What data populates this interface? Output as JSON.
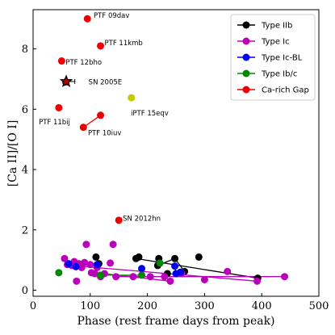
{
  "chart_data": {
    "type": "scatter",
    "xlabel": "Phase (rest frame days from peak)",
    "ylabel": "[Ca II]/[O I]",
    "xlim": [
      0,
      500
    ],
    "ylim": [
      -0.2,
      9.3
    ],
    "xticks": [
      0,
      100,
      200,
      300,
      400,
      500
    ],
    "yticks": [
      0,
      2,
      4,
      6,
      8
    ],
    "grid": false,
    "legend_position": "top-right",
    "series": [
      {
        "name": "Type IIb",
        "color": "#000000",
        "points": [
          [
            110,
            1.1
          ],
          [
            115,
            0.88
          ],
          [
            180,
            1.05
          ],
          [
            185,
            1.1
          ],
          [
            220,
            1.05
          ],
          [
            218,
            0.82
          ],
          [
            235,
            0.55
          ],
          [
            248,
            1.05
          ],
          [
            265,
            0.62
          ],
          [
            290,
            1.1
          ],
          [
            393,
            0.4
          ]
        ],
        "segments": [
          [
            [
              180,
              1.05
            ],
            [
              393,
              0.4
            ]
          ],
          [
            [
              110,
              1.1
            ],
            [
              115,
              0.88
            ]
          ],
          [
            [
              218,
              0.82
            ],
            [
              248,
              1.05
            ],
            [
              265,
              0.62
            ]
          ]
        ]
      },
      {
        "name": "Type Ic",
        "color": "#bb00bb",
        "points": [
          [
            55,
            1.05
          ],
          [
            60,
            0.85
          ],
          [
            68,
            0.82
          ],
          [
            72,
            0.95
          ],
          [
            76,
            0.3
          ],
          [
            80,
            0.88
          ],
          [
            85,
            0.75
          ],
          [
            90,
            0.92
          ],
          [
            93,
            1.52
          ],
          [
            100,
            0.85
          ],
          [
            102,
            0.58
          ],
          [
            108,
            0.55
          ],
          [
            112,
            0.75
          ],
          [
            118,
            0.45
          ],
          [
            125,
            0.55
          ],
          [
            135,
            0.9
          ],
          [
            140,
            1.52
          ],
          [
            145,
            0.45
          ],
          [
            175,
            0.45
          ],
          [
            205,
            0.45
          ],
          [
            230,
            0.45
          ],
          [
            240,
            0.3
          ],
          [
            260,
            0.55
          ],
          [
            300,
            0.35
          ],
          [
            340,
            0.62
          ],
          [
            392,
            0.3
          ],
          [
            440,
            0.45
          ]
        ],
        "segments": [
          [
            [
              60,
              0.85
            ],
            [
              93,
              0.92
            ],
            [
              118,
              0.75
            ]
          ],
          [
            [
              68,
              0.82
            ],
            [
              392,
              0.3
            ]
          ],
          [
            [
              125,
              0.55
            ],
            [
              240,
              0.3
            ]
          ],
          [
            [
              145,
              0.45
            ],
            [
              440,
              0.45
            ]
          ],
          [
            [
              55,
              1.05
            ],
            [
              60,
              0.85
            ]
          ]
        ]
      },
      {
        "name": "Type Ic-BL",
        "color": "#0000ee",
        "points": [
          [
            62,
            0.88
          ],
          [
            75,
            0.78
          ],
          [
            112,
            0.85
          ],
          [
            190,
            0.72
          ],
          [
            248,
            0.8
          ],
          [
            250,
            0.55
          ],
          [
            258,
            0.6
          ]
        ],
        "segments": [
          [
            [
              62,
              0.88
            ],
            [
              112,
              0.85
            ]
          ],
          [
            [
              248,
              0.8
            ],
            [
              250,
              0.55
            ],
            [
              258,
              0.6
            ]
          ]
        ]
      },
      {
        "name": "Type Ib/c",
        "color": "#008800",
        "points": [
          [
            45,
            0.58
          ],
          [
            118,
            0.5
          ],
          [
            190,
            0.5
          ],
          [
            222,
            0.9
          ]
        ],
        "segments": [
          [
            [
              118,
              0.5
            ],
            [
              190,
              0.5
            ]
          ]
        ]
      },
      {
        "name": "Ca-rich Gap",
        "color": "#ee0000",
        "points": [
          [
            95,
            9.0
          ],
          [
            118,
            8.1
          ],
          [
            50,
            7.6
          ],
          [
            57,
            6.9
          ],
          [
            45,
            6.05
          ],
          [
            118,
            5.8
          ],
          [
            88,
            5.4
          ],
          [
            150,
            2.32
          ]
        ],
        "segments": [
          [
            [
              88,
              5.4
            ],
            [
              118,
              5.8
            ]
          ]
        ]
      }
    ],
    "extra_points": [
      {
        "x": 172,
        "y": 6.38,
        "color": "#c8c800"
      }
    ],
    "star_marker": {
      "x": 58,
      "y": 6.92,
      "color": "#000000",
      "fill": "#bb0000"
    },
    "errorbar": {
      "y": 6.92,
      "x_from": 58,
      "x_to": 73
    },
    "annotations": [
      {
        "text": "PTF 09dav",
        "x": 106,
        "y": 9.03
      },
      {
        "text": "PTF 11kmb",
        "x": 125,
        "y": 8.12
      },
      {
        "text": "PTF 12bho",
        "x": 57,
        "y": 7.48
      },
      {
        "text": "SN 2005E",
        "x": 97,
        "y": 6.82
      },
      {
        "text": "PTF 11bij",
        "x": 10,
        "y": 5.5
      },
      {
        "text": "PTF 10iuv",
        "x": 96,
        "y": 5.14
      },
      {
        "text": "iPTF 15eqv",
        "x": 171,
        "y": 5.8
      },
      {
        "text": "SN 2012hn",
        "x": 157,
        "y": 2.3
      }
    ]
  }
}
